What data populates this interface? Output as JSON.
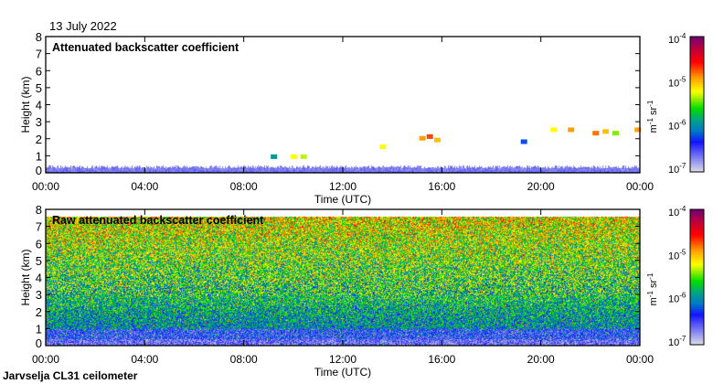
{
  "date": "13 July 2022",
  "footer": "Jarvselja CL31 ceilometer",
  "chart_data": [
    {
      "type": "heatmap",
      "title": "Attenuated backscatter coefficient",
      "xlabel": "Time (UTC)",
      "ylabel": "Height (km)",
      "xlim": [
        0,
        24
      ],
      "ylim": [
        0,
        8
      ],
      "xticks": [
        "00:00",
        "04:00",
        "08:00",
        "12:00",
        "16:00",
        "20:00",
        "00:00"
      ],
      "yticks": [
        "0",
        "1",
        "2",
        "3",
        "4",
        "5",
        "6",
        "7",
        "8"
      ],
      "colorbar": {
        "label_base": "m",
        "label_exp1": "-1",
        "label_mid": " sr",
        "label_exp2": "-1",
        "ticks": [
          {
            "base": "10",
            "exp": "-4"
          },
          {
            "base": "10",
            "exp": "-5"
          },
          {
            "base": "10",
            "exp": "-6"
          },
          {
            "base": "10",
            "exp": "-7"
          }
        ],
        "range_log10": [
          -7,
          -4
        ]
      },
      "boundary_layer_top_km": 0.35,
      "features": [
        {
          "t": 9.2,
          "h": 0.92,
          "log10": -5.9
        },
        {
          "t": 10.0,
          "h": 0.92,
          "log10": -5.2
        },
        {
          "t": 10.4,
          "h": 0.92,
          "log10": -5.3
        },
        {
          "t": 13.6,
          "h": 1.5,
          "log10": -5.2
        },
        {
          "t": 15.2,
          "h": 2.0,
          "log10": -4.9
        },
        {
          "t": 15.5,
          "h": 2.1,
          "log10": -4.7
        },
        {
          "t": 15.8,
          "h": 1.9,
          "log10": -5.0
        },
        {
          "t": 19.3,
          "h": 1.8,
          "log10": -6.2
        },
        {
          "t": 20.5,
          "h": 2.5,
          "log10": -5.2
        },
        {
          "t": 21.2,
          "h": 2.5,
          "log10": -4.9
        },
        {
          "t": 22.2,
          "h": 2.3,
          "log10": -4.8
        },
        {
          "t": 22.6,
          "h": 2.4,
          "log10": -5.0
        },
        {
          "t": 23.0,
          "h": 2.3,
          "log10": -5.4
        },
        {
          "t": 23.9,
          "h": 2.5,
          "log10": -4.9
        }
      ]
    },
    {
      "type": "heatmap",
      "title": "Raw attenuated backscatter coefficient",
      "xlabel": "Time (UTC)",
      "ylabel": "Height (km)",
      "xlim": [
        0,
        24
      ],
      "ylim": [
        0,
        8
      ],
      "data_top_km": 7.6,
      "xticks": [
        "00:00",
        "04:00",
        "08:00",
        "12:00",
        "16:00",
        "20:00",
        "00:00"
      ],
      "yticks": [
        "0",
        "1",
        "2",
        "3",
        "4",
        "5",
        "6",
        "7",
        "8"
      ],
      "colorbar": {
        "label_base": "m",
        "label_exp1": "-1",
        "label_mid": " sr",
        "label_exp2": "-1",
        "ticks": [
          {
            "base": "10",
            "exp": "-4"
          },
          {
            "base": "10",
            "exp": "-5"
          },
          {
            "base": "10",
            "exp": "-6"
          },
          {
            "base": "10",
            "exp": "-7"
          }
        ],
        "range_log10": [
          -7,
          -4
        ]
      }
    }
  ]
}
